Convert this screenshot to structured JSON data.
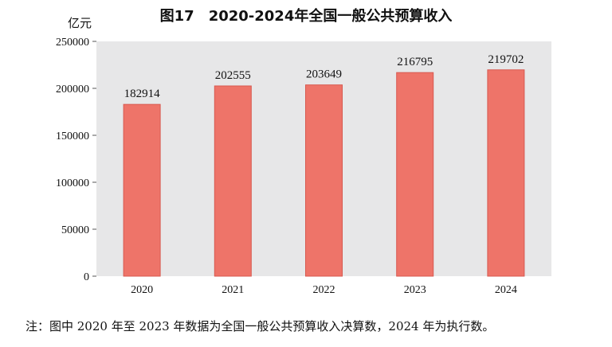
{
  "chart_data": {
    "type": "bar",
    "title": "图17　2020-2024年全国一般公共预算收入",
    "ylabel": "亿元",
    "xlabel": "",
    "categories": [
      "2020",
      "2021",
      "2022",
      "2023",
      "2024"
    ],
    "values": [
      182914,
      202555,
      203649,
      216795,
      219702
    ],
    "data_labels": [
      "182914",
      "202555",
      "203649",
      "216795",
      "219702"
    ],
    "ylim": [
      0,
      250000
    ],
    "yticks": [
      0,
      50000,
      100000,
      150000,
      200000,
      250000
    ],
    "ytick_labels": [
      "0",
      "50000",
      "100000",
      "150000",
      "200000",
      "250000"
    ],
    "grid": false,
    "legend": "none",
    "colors": {
      "bar": "#ee7469",
      "bar_edge": "#d85a50",
      "plot_background": "#e7e7e8"
    }
  },
  "note": "注：图中 2020 年至 2023 年数据为全国一般公共预算收入决算数，2024 年为执行数。"
}
